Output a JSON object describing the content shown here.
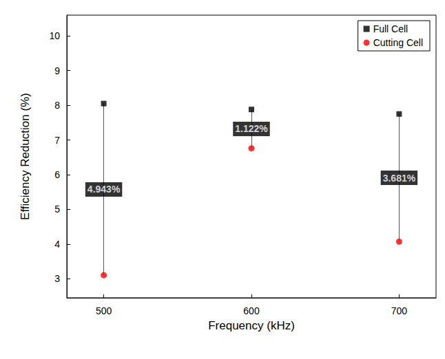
{
  "chart_data": {
    "type": "scatter",
    "xlabel": "Frequency (kHz)",
    "ylabel": "Efficiency Reduction (%)",
    "x": [
      500,
      600,
      700
    ],
    "series": [
      {
        "name": "Full Cell",
        "color": "#000000",
        "marker": "square",
        "values": [
          8.05,
          7.88,
          7.75
        ]
      },
      {
        "name": "Cutting Cell",
        "color": "#ff0000",
        "marker": "circle",
        "values": [
          3.1,
          6.76,
          4.07
        ]
      }
    ],
    "annotations": [
      "4.943%",
      "1.122%",
      "3.681%"
    ],
    "xlim": [
      475,
      725
    ],
    "xticks": [
      500,
      600,
      700
    ],
    "ylim": [
      2.45,
      10.6
    ],
    "yticks": [
      3,
      4,
      5,
      6,
      7,
      8,
      9,
      10
    ],
    "legend": "upper right",
    "grid": false
  }
}
